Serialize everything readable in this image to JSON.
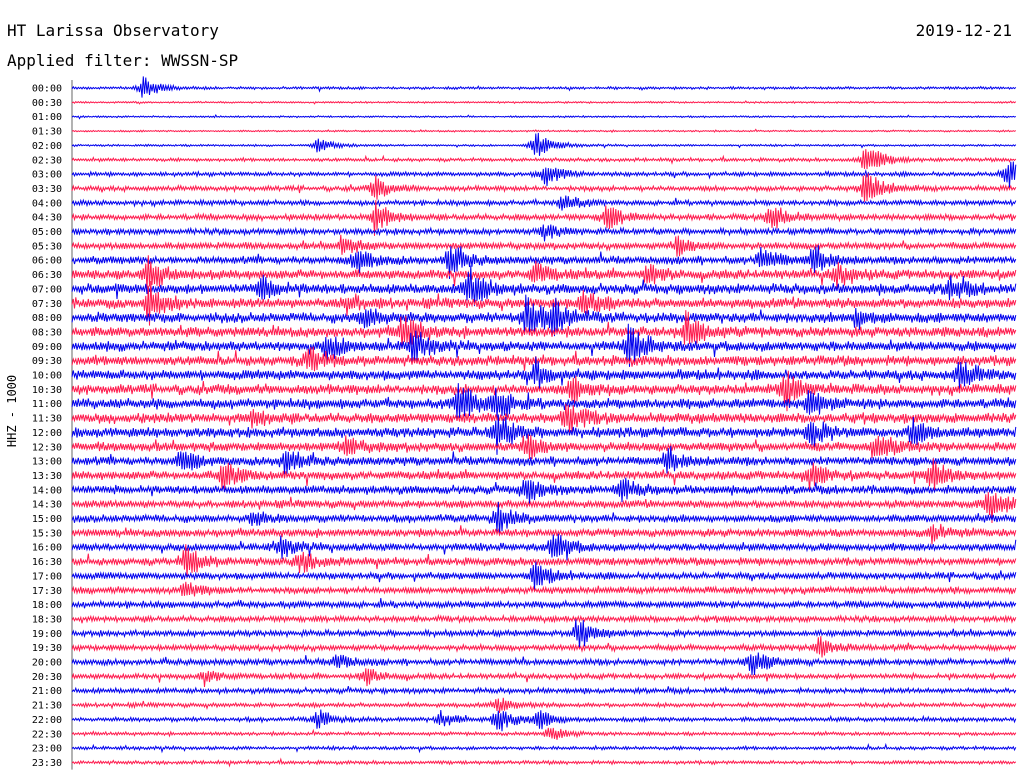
{
  "header": {
    "station": "HT Larissa Observatory",
    "date": "2019-12-21",
    "filter": "Applied filter: WWSSN-SP",
    "channel": "HHZ - 1000"
  },
  "colors": {
    "odd_trace": "#0000ee",
    "even_trace": "#ff1a4d"
  },
  "chart_data": {
    "type": "line",
    "title": "HT Larissa Observatory",
    "subtitle": "Applied filter: WWSSN-SP",
    "ylabel": "HHZ - 1000",
    "xlabel": "",
    "rows": [
      "00:00",
      "00:30",
      "01:00",
      "01:30",
      "02:00",
      "02:30",
      "03:00",
      "03:30",
      "04:00",
      "04:30",
      "05:00",
      "05:30",
      "06:00",
      "06:30",
      "07:00",
      "07:30",
      "08:00",
      "08:30",
      "09:00",
      "09:30",
      "10:00",
      "10:30",
      "11:00",
      "11:30",
      "12:00",
      "12:30",
      "13:00",
      "13:30",
      "14:00",
      "14:30",
      "15:00",
      "15:30",
      "16:00",
      "16:30",
      "17:00",
      "17:30",
      "18:00",
      "18:30",
      "19:00",
      "19:30",
      "20:00",
      "20:30",
      "21:00",
      "21:30",
      "22:00",
      "22:30",
      "23:00",
      "23:30"
    ],
    "noise_level": [
      1.5,
      1.0,
      1.0,
      1.0,
      1.2,
      2.0,
      2.5,
      3.0,
      3.0,
      3.5,
      3.5,
      4.0,
      4.5,
      5.5,
      6.0,
      6.0,
      6.0,
      6.0,
      6.0,
      6.0,
      6.0,
      6.0,
      6.0,
      6.0,
      6.0,
      5.5,
      5.0,
      5.0,
      5.0,
      4.5,
      4.5,
      4.5,
      4.5,
      4.5,
      4.0,
      4.0,
      4.0,
      3.5,
      3.5,
      3.5,
      3.5,
      3.0,
      3.0,
      2.5,
      2.5,
      2.0,
      2.0,
      2.0
    ],
    "events": [
      {
        "row": 0,
        "pos": 0.075,
        "amp": 12
      },
      {
        "row": 4,
        "pos": 0.26,
        "amp": 8
      },
      {
        "row": 4,
        "pos": 0.49,
        "amp": 16
      },
      {
        "row": 5,
        "pos": 0.84,
        "amp": 20
      },
      {
        "row": 6,
        "pos": 0.5,
        "amp": 14
      },
      {
        "row": 6,
        "pos": 0.99,
        "amp": 18
      },
      {
        "row": 7,
        "pos": 0.32,
        "amp": 12
      },
      {
        "row": 7,
        "pos": 0.84,
        "amp": 22
      },
      {
        "row": 8,
        "pos": 0.52,
        "amp": 10
      },
      {
        "row": 9,
        "pos": 0.32,
        "amp": 18
      },
      {
        "row": 9,
        "pos": 0.565,
        "amp": 14
      },
      {
        "row": 9,
        "pos": 0.74,
        "amp": 16
      },
      {
        "row": 10,
        "pos": 0.5,
        "amp": 8
      },
      {
        "row": 11,
        "pos": 0.285,
        "amp": 10
      },
      {
        "row": 11,
        "pos": 0.64,
        "amp": 10
      },
      {
        "row": 12,
        "pos": 0.3,
        "amp": 16
      },
      {
        "row": 12,
        "pos": 0.4,
        "amp": 18
      },
      {
        "row": 12,
        "pos": 0.73,
        "amp": 14
      },
      {
        "row": 12,
        "pos": 0.785,
        "amp": 14
      },
      {
        "row": 13,
        "pos": 0.08,
        "amp": 18
      },
      {
        "row": 13,
        "pos": 0.49,
        "amp": 12
      },
      {
        "row": 13,
        "pos": 0.61,
        "amp": 10
      },
      {
        "row": 13,
        "pos": 0.81,
        "amp": 12
      },
      {
        "row": 14,
        "pos": 0.2,
        "amp": 12
      },
      {
        "row": 14,
        "pos": 0.42,
        "amp": 22
      },
      {
        "row": 14,
        "pos": 0.93,
        "amp": 12
      },
      {
        "row": 15,
        "pos": 0.08,
        "amp": 22
      },
      {
        "row": 15,
        "pos": 0.29,
        "amp": 10
      },
      {
        "row": 15,
        "pos": 0.54,
        "amp": 16
      },
      {
        "row": 16,
        "pos": 0.31,
        "amp": 14
      },
      {
        "row": 16,
        "pos": 0.48,
        "amp": 22
      },
      {
        "row": 16,
        "pos": 0.51,
        "amp": 18
      },
      {
        "row": 16,
        "pos": 0.83,
        "amp": 10
      },
      {
        "row": 17,
        "pos": 0.35,
        "amp": 18
      },
      {
        "row": 17,
        "pos": 0.65,
        "amp": 20
      },
      {
        "row": 18,
        "pos": 0.27,
        "amp": 14
      },
      {
        "row": 18,
        "pos": 0.36,
        "amp": 16
      },
      {
        "row": 18,
        "pos": 0.59,
        "amp": 22
      },
      {
        "row": 19,
        "pos": 0.25,
        "amp": 14
      },
      {
        "row": 20,
        "pos": 0.49,
        "amp": 14
      },
      {
        "row": 20,
        "pos": 0.94,
        "amp": 16
      },
      {
        "row": 21,
        "pos": 0.53,
        "amp": 14
      },
      {
        "row": 21,
        "pos": 0.755,
        "amp": 20
      },
      {
        "row": 22,
        "pos": 0.41,
        "amp": 24
      },
      {
        "row": 22,
        "pos": 0.45,
        "amp": 16
      },
      {
        "row": 22,
        "pos": 0.78,
        "amp": 14
      },
      {
        "row": 23,
        "pos": 0.525,
        "amp": 18
      },
      {
        "row": 23,
        "pos": 0.19,
        "amp": 8
      },
      {
        "row": 24,
        "pos": 0.45,
        "amp": 20
      },
      {
        "row": 24,
        "pos": 0.78,
        "amp": 16
      },
      {
        "row": 24,
        "pos": 0.89,
        "amp": 14
      },
      {
        "row": 25,
        "pos": 0.29,
        "amp": 10
      },
      {
        "row": 25,
        "pos": 0.48,
        "amp": 14
      },
      {
        "row": 25,
        "pos": 0.85,
        "amp": 16
      },
      {
        "row": 26,
        "pos": 0.115,
        "amp": 14
      },
      {
        "row": 26,
        "pos": 0.225,
        "amp": 14
      },
      {
        "row": 26,
        "pos": 0.63,
        "amp": 12
      },
      {
        "row": 27,
        "pos": 0.16,
        "amp": 16
      },
      {
        "row": 27,
        "pos": 0.78,
        "amp": 14
      },
      {
        "row": 27,
        "pos": 0.91,
        "amp": 18
      },
      {
        "row": 28,
        "pos": 0.48,
        "amp": 14
      },
      {
        "row": 28,
        "pos": 0.58,
        "amp": 12
      },
      {
        "row": 29,
        "pos": 0.97,
        "amp": 22
      },
      {
        "row": 30,
        "pos": 0.45,
        "amp": 16
      },
      {
        "row": 30,
        "pos": 0.19,
        "amp": 8
      },
      {
        "row": 31,
        "pos": 0.91,
        "amp": 10
      },
      {
        "row": 32,
        "pos": 0.51,
        "amp": 16
      },
      {
        "row": 32,
        "pos": 0.22,
        "amp": 10
      },
      {
        "row": 33,
        "pos": 0.12,
        "amp": 18
      },
      {
        "row": 33,
        "pos": 0.24,
        "amp": 12
      },
      {
        "row": 34,
        "pos": 0.49,
        "amp": 14
      },
      {
        "row": 35,
        "pos": 0.12,
        "amp": 8
      },
      {
        "row": 38,
        "pos": 0.535,
        "amp": 18
      },
      {
        "row": 39,
        "pos": 0.79,
        "amp": 14
      },
      {
        "row": 40,
        "pos": 0.72,
        "amp": 14
      },
      {
        "row": 40,
        "pos": 0.28,
        "amp": 8
      },
      {
        "row": 41,
        "pos": 0.31,
        "amp": 10
      },
      {
        "row": 41,
        "pos": 0.14,
        "amp": 8
      },
      {
        "row": 43,
        "pos": 0.45,
        "amp": 8
      },
      {
        "row": 44,
        "pos": 0.45,
        "amp": 16
      },
      {
        "row": 44,
        "pos": 0.26,
        "amp": 10
      },
      {
        "row": 44,
        "pos": 0.39,
        "amp": 8
      },
      {
        "row": 44,
        "pos": 0.495,
        "amp": 10
      },
      {
        "row": 45,
        "pos": 0.505,
        "amp": 8
      }
    ]
  }
}
